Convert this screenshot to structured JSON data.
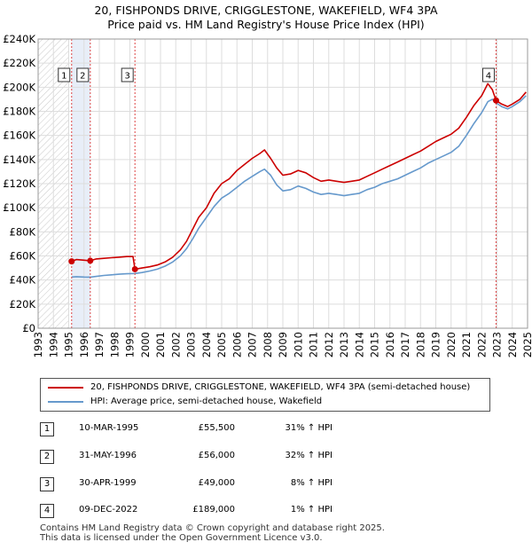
{
  "title_line1": "20, FISHPONDS DRIVE, CRIGGLESTONE, WAKEFIELD, WF4 3PA",
  "title_line2": "Price paid vs. HM Land Registry's House Price Index (HPI)",
  "colors": {
    "price": "#cc0000",
    "hpi": "#6699cc",
    "grid": "#dddddd",
    "shade": "#e8eef8",
    "marker_line": "#dd4444"
  },
  "chart_data": {
    "type": "line",
    "title": "20, FISHPONDS DRIVE, CRIGGLESTONE, WAKEFIELD, WF4 3PA",
    "subtitle": "Price paid vs. HM Land Registry's House Price Index (HPI)",
    "xlabel": "",
    "ylabel": "",
    "xlim": [
      1993,
      2025
    ],
    "ylim": [
      0,
      240000
    ],
    "x_ticks": [
      "1993",
      "1994",
      "1995",
      "1996",
      "1997",
      "1998",
      "1999",
      "2000",
      "2001",
      "2002",
      "2003",
      "2004",
      "2005",
      "2006",
      "2007",
      "2008",
      "2009",
      "2010",
      "2011",
      "2012",
      "2013",
      "2014",
      "2015",
      "2016",
      "2017",
      "2018",
      "2019",
      "2020",
      "2021",
      "2022",
      "2023",
      "2024",
      "2025"
    ],
    "y_ticks": [
      {
        "value": 0,
        "label": "£0"
      },
      {
        "value": 20000,
        "label": "£20K"
      },
      {
        "value": 40000,
        "label": "£40K"
      },
      {
        "value": 60000,
        "label": "£60K"
      },
      {
        "value": 80000,
        "label": "£80K"
      },
      {
        "value": 100000,
        "label": "£100K"
      },
      {
        "value": 120000,
        "label": "£120K"
      },
      {
        "value": 140000,
        "label": "£140K"
      },
      {
        "value": 160000,
        "label": "£160K"
      },
      {
        "value": 180000,
        "label": "£180K"
      },
      {
        "value": 200000,
        "label": "£200K"
      },
      {
        "value": 220000,
        "label": "£220K"
      },
      {
        "value": 240000,
        "label": "£240K"
      }
    ],
    "grid": true,
    "series": [
      {
        "name": "20, FISHPONDS DRIVE, CRIGGLESTONE, WAKEFIELD, WF4 3PA (semi-detached house)",
        "color": "#cc0000",
        "points": [
          [
            1995.19,
            55500
          ],
          [
            1995.5,
            57000
          ],
          [
            1996.0,
            56500
          ],
          [
            1996.41,
            56000
          ],
          [
            1996.8,
            57500
          ],
          [
            1997.3,
            58000
          ],
          [
            1997.8,
            58500
          ],
          [
            1998.3,
            59000
          ],
          [
            1998.8,
            59500
          ],
          [
            1999.2,
            59500
          ],
          [
            1999.33,
            49000
          ],
          [
            1999.8,
            50000
          ],
          [
            2000.3,
            51000
          ],
          [
            2000.8,
            52500
          ],
          [
            2001.3,
            55000
          ],
          [
            2001.8,
            59000
          ],
          [
            2002.3,
            65000
          ],
          [
            2002.7,
            72000
          ],
          [
            2003.1,
            82000
          ],
          [
            2003.5,
            92000
          ],
          [
            2004.0,
            100000
          ],
          [
            2004.5,
            112000
          ],
          [
            2005.0,
            120000
          ],
          [
            2005.5,
            124000
          ],
          [
            2006.0,
            131000
          ],
          [
            2006.5,
            136000
          ],
          [
            2007.0,
            141000
          ],
          [
            2007.5,
            145000
          ],
          [
            2007.8,
            148000
          ],
          [
            2008.2,
            141000
          ],
          [
            2008.6,
            133000
          ],
          [
            2009.0,
            127000
          ],
          [
            2009.5,
            128000
          ],
          [
            2010.0,
            131000
          ],
          [
            2010.5,
            129000
          ],
          [
            2011.0,
            125000
          ],
          [
            2011.5,
            122000
          ],
          [
            2012.0,
            123000
          ],
          [
            2012.5,
            122000
          ],
          [
            2013.0,
            121000
          ],
          [
            2013.5,
            122000
          ],
          [
            2014.0,
            123000
          ],
          [
            2014.5,
            126000
          ],
          [
            2015.0,
            129000
          ],
          [
            2015.5,
            132000
          ],
          [
            2016.0,
            135000
          ],
          [
            2016.5,
            138000
          ],
          [
            2017.0,
            141000
          ],
          [
            2017.5,
            144000
          ],
          [
            2018.0,
            147000
          ],
          [
            2018.5,
            151000
          ],
          [
            2019.0,
            155000
          ],
          [
            2019.5,
            158000
          ],
          [
            2020.0,
            161000
          ],
          [
            2020.5,
            166000
          ],
          [
            2021.0,
            175000
          ],
          [
            2021.5,
            185000
          ],
          [
            2022.0,
            193000
          ],
          [
            2022.4,
            203000
          ],
          [
            2022.7,
            198000
          ],
          [
            2022.94,
            189000
          ],
          [
            2023.3,
            186000
          ],
          [
            2023.7,
            184000
          ],
          [
            2024.0,
            186000
          ],
          [
            2024.5,
            190000
          ],
          [
            2024.9,
            196000
          ]
        ]
      },
      {
        "name": "HPI: Average price, semi-detached house, Wakefield",
        "color": "#6699cc",
        "points": [
          [
            1995.19,
            42500
          ],
          [
            1995.5,
            42800
          ],
          [
            1996.0,
            42500
          ],
          [
            1996.41,
            42400
          ],
          [
            1996.8,
            43000
          ],
          [
            1997.3,
            43800
          ],
          [
            1997.8,
            44300
          ],
          [
            1998.3,
            44800
          ],
          [
            1998.8,
            45200
          ],
          [
            1999.33,
            45400
          ],
          [
            1999.8,
            46200
          ],
          [
            2000.3,
            47500
          ],
          [
            2000.8,
            49000
          ],
          [
            2001.3,
            51500
          ],
          [
            2001.8,
            55000
          ],
          [
            2002.3,
            60000
          ],
          [
            2002.7,
            66000
          ],
          [
            2003.1,
            74000
          ],
          [
            2003.5,
            83000
          ],
          [
            2004.0,
            92000
          ],
          [
            2004.5,
            101000
          ],
          [
            2005.0,
            108000
          ],
          [
            2005.5,
            112000
          ],
          [
            2006.0,
            117000
          ],
          [
            2006.5,
            122000
          ],
          [
            2007.0,
            126000
          ],
          [
            2007.5,
            130000
          ],
          [
            2007.8,
            132000
          ],
          [
            2008.2,
            127000
          ],
          [
            2008.6,
            119000
          ],
          [
            2009.0,
            114000
          ],
          [
            2009.5,
            115000
          ],
          [
            2010.0,
            118000
          ],
          [
            2010.5,
            116000
          ],
          [
            2011.0,
            113000
          ],
          [
            2011.5,
            111000
          ],
          [
            2012.0,
            112000
          ],
          [
            2012.5,
            111000
          ],
          [
            2013.0,
            110000
          ],
          [
            2013.5,
            111000
          ],
          [
            2014.0,
            112000
          ],
          [
            2014.5,
            115000
          ],
          [
            2015.0,
            117000
          ],
          [
            2015.5,
            120000
          ],
          [
            2016.0,
            122000
          ],
          [
            2016.5,
            124000
          ],
          [
            2017.0,
            127000
          ],
          [
            2017.5,
            130000
          ],
          [
            2018.0,
            133000
          ],
          [
            2018.5,
            137000
          ],
          [
            2019.0,
            140000
          ],
          [
            2019.5,
            143000
          ],
          [
            2020.0,
            146000
          ],
          [
            2020.5,
            151000
          ],
          [
            2021.0,
            160000
          ],
          [
            2021.5,
            170000
          ],
          [
            2022.0,
            179000
          ],
          [
            2022.4,
            188000
          ],
          [
            2022.7,
            190000
          ],
          [
            2022.94,
            187000
          ],
          [
            2023.3,
            184000
          ],
          [
            2023.7,
            182000
          ],
          [
            2024.0,
            184000
          ],
          [
            2024.5,
            188000
          ],
          [
            2024.9,
            193000
          ]
        ]
      }
    ],
    "sales": [
      {
        "id": "1",
        "x": 1995.19,
        "value": 55500
      },
      {
        "id": "2",
        "x": 1996.41,
        "value": 56000
      },
      {
        "id": "3",
        "x": 1999.33,
        "value": 49000
      },
      {
        "id": "4",
        "x": 2022.94,
        "value": 189000
      }
    ],
    "shaded_ranges": [
      [
        1995.19,
        1996.41
      ]
    ],
    "hatched_range": [
      1993,
      1995.0
    ],
    "legend_position": "below"
  },
  "legend": {
    "price_label": "20, FISHPONDS DRIVE, CRIGGLESTONE, WAKEFIELD, WF4 3PA (semi-detached house)",
    "hpi_label": "HPI: Average price, semi-detached house, Wakefield"
  },
  "sales_table": [
    {
      "num": "1",
      "date": "10-MAR-1995",
      "price": "£55,500",
      "hpi": "31% ↑ HPI"
    },
    {
      "num": "2",
      "date": "31-MAY-1996",
      "price": "£56,000",
      "hpi": "32% ↑ HPI"
    },
    {
      "num": "3",
      "date": "30-APR-1999",
      "price": "£49,000",
      "hpi": "8% ↑ HPI"
    },
    {
      "num": "4",
      "date": "09-DEC-2022",
      "price": "£189,000",
      "hpi": "1% ↑ HPI"
    }
  ],
  "footer": {
    "line1": "Contains HM Land Registry data © Crown copyright and database right 2025.",
    "line2": "This data is licensed under the Open Government Licence v3.0."
  }
}
